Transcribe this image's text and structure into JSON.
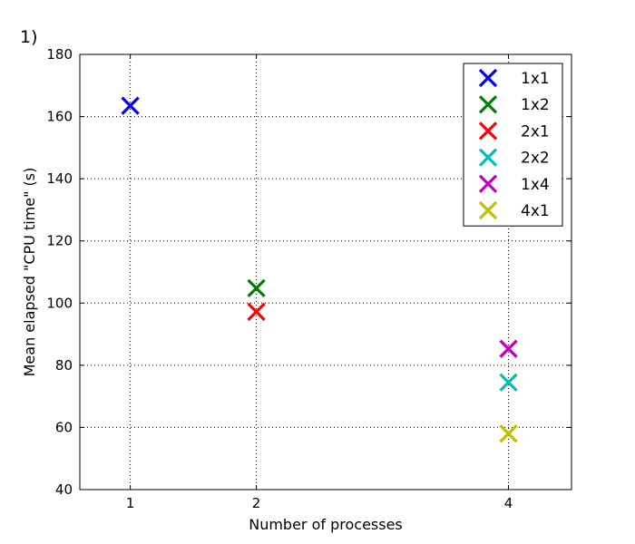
{
  "chart_data": {
    "type": "scatter",
    "panel_label": "1)",
    "title": "",
    "xlabel": "Number of processes",
    "ylabel": "Mean elapsed \"CPU time\" (s)",
    "xlim": [
      0.6,
      4.5
    ],
    "ylim": [
      40,
      180
    ],
    "xticks": [
      1,
      2,
      4
    ],
    "yticks": [
      40,
      60,
      80,
      100,
      120,
      140,
      160,
      180
    ],
    "grid": true,
    "legend_position": "top-right",
    "marker": "x",
    "series": [
      {
        "name": "1x1",
        "color": "#0000ff",
        "x": [
          1
        ],
        "y": [
          163.5
        ]
      },
      {
        "name": "1x2",
        "color": "#008000",
        "x": [
          2
        ],
        "y": [
          104.8
        ]
      },
      {
        "name": "2x1",
        "color": "#ff0000",
        "x": [
          2
        ],
        "y": [
          97.2
        ]
      },
      {
        "name": "2x2",
        "color": "#00bfbf",
        "x": [
          4
        ],
        "y": [
          74.5
        ]
      },
      {
        "name": "1x4",
        "color": "#bf00bf",
        "x": [
          4
        ],
        "y": [
          85.3
        ]
      },
      {
        "name": "4x1",
        "color": "#bfbf00",
        "x": [
          4
        ],
        "y": [
          58.0
        ]
      }
    ]
  }
}
